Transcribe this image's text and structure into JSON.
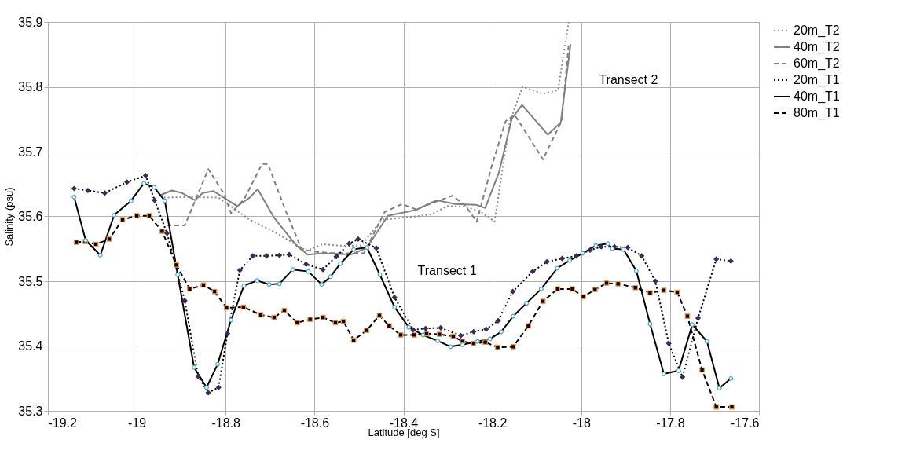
{
  "chart_data": {
    "type": "line",
    "xlabel": "Latitude [deg S]",
    "ylabel": "Salinity (psu)",
    "xlim": [
      -19.2,
      -17.6
    ],
    "xticks": [
      -19.2,
      -19,
      -18.8,
      -18.6,
      -18.4,
      -18.2,
      -18,
      -17.8,
      -17.6
    ],
    "ylim": [
      35.3,
      35.9
    ],
    "yticks": [
      35.3,
      35.4,
      35.5,
      35.6,
      35.7,
      35.8,
      35.9
    ],
    "grid": true,
    "legend": "right",
    "annotations": [
      "Transect 2",
      "Transect 1"
    ],
    "series": [
      {
        "name": "20m_T2",
        "color": "#8c8c8c",
        "line_style": "dotted",
        "marker": "none",
        "x": [
          -18.939,
          -18.875,
          -18.816,
          -18.746,
          -18.688,
          -18.618,
          -18.582,
          -18.547,
          -18.495,
          -18.448,
          -18.384,
          -18.337,
          -18.302,
          -18.261,
          -18.226,
          -18.195,
          -18.161,
          -18.132,
          -18.086,
          -18.052,
          -18.028
        ],
        "values": [
          35.629,
          35.63,
          35.629,
          35.595,
          35.575,
          35.547,
          35.557,
          35.555,
          35.555,
          35.595,
          35.599,
          35.603,
          35.616,
          35.615,
          35.607,
          35.592,
          35.745,
          35.8,
          35.789,
          35.795,
          35.9
        ]
      },
      {
        "name": "40m_T2",
        "color": "#808080",
        "line_style": "solid",
        "marker": "none",
        "x": [
          -18.946,
          -18.921,
          -18.898,
          -18.869,
          -18.852,
          -18.827,
          -18.8,
          -18.774,
          -18.746,
          -18.728,
          -18.692,
          -18.641,
          -18.615,
          -18.582,
          -18.547,
          -18.518,
          -18.483,
          -18.435,
          -18.372,
          -18.325,
          -18.284,
          -18.237,
          -18.216,
          -18.185,
          -18.156,
          -18.133,
          -18.075,
          -18.046,
          -18.024
        ],
        "values": [
          35.633,
          35.64,
          35.636,
          35.625,
          35.636,
          35.639,
          35.627,
          35.616,
          35.629,
          35.642,
          35.599,
          35.555,
          35.541,
          35.543,
          35.542,
          35.541,
          35.551,
          35.601,
          35.61,
          35.625,
          35.619,
          35.618,
          35.613,
          35.668,
          35.751,
          35.772,
          35.726,
          35.745,
          35.866
        ]
      },
      {
        "name": "60m_T2",
        "color": "#808080",
        "line_style": "dashed",
        "marker": "none",
        "x": [
          -18.933,
          -18.892,
          -18.839,
          -18.804,
          -18.788,
          -18.758,
          -18.718,
          -18.705,
          -18.664,
          -18.629,
          -18.594,
          -18.547,
          -18.489,
          -18.442,
          -18.403,
          -18.372,
          -18.29,
          -18.261,
          -18.235,
          -18.202,
          -18.17,
          -18.15,
          -18.086,
          -18.044,
          -18.028
        ],
        "values": [
          35.586,
          35.586,
          35.673,
          35.635,
          35.605,
          35.627,
          35.681,
          35.681,
          35.607,
          35.549,
          35.545,
          35.543,
          35.543,
          35.607,
          35.619,
          35.611,
          35.632,
          35.617,
          35.592,
          35.676,
          35.747,
          35.757,
          35.688,
          35.747,
          35.866
        ]
      },
      {
        "name": "20m_T1",
        "color": "#000000",
        "line_style": "dotted",
        "marker": "diamond",
        "x": [
          -19.141,
          -19.11,
          -19.072,
          -19.022,
          -18.98,
          -18.96,
          -18.932,
          -18.892,
          -18.862,
          -18.839,
          -18.816,
          -18.796,
          -18.768,
          -18.739,
          -18.708,
          -18.679,
          -18.657,
          -18.619,
          -18.581,
          -18.551,
          -18.522,
          -18.502,
          -18.461,
          -18.42,
          -18.378,
          -18.35,
          -18.316,
          -18.271,
          -18.242,
          -18.214,
          -18.187,
          -18.154,
          -18.109,
          -18.077,
          -18.043,
          -18.011,
          -17.98,
          -17.955,
          -17.925,
          -17.895,
          -17.864,
          -17.833,
          -17.803,
          -17.772,
          -17.737,
          -17.696,
          -17.663
        ],
        "values": [
          35.643,
          35.64,
          35.636,
          35.653,
          35.663,
          35.625,
          35.574,
          35.47,
          35.353,
          35.328,
          35.336,
          35.419,
          35.517,
          35.539,
          35.539,
          35.54,
          35.541,
          35.526,
          35.518,
          35.538,
          35.558,
          35.565,
          35.551,
          35.475,
          35.425,
          35.427,
          35.428,
          35.416,
          35.422,
          35.426,
          35.439,
          35.484,
          35.515,
          35.53,
          35.535,
          35.539,
          35.548,
          35.553,
          35.553,
          35.552,
          35.539,
          35.5,
          35.404,
          35.352,
          35.443,
          35.534,
          35.531
        ]
      },
      {
        "name": "40m_T1",
        "color": "#000000",
        "line_style": "solid",
        "marker": "circle",
        "x": [
          -19.141,
          -19.115,
          -19.082,
          -19.051,
          -19.013,
          -18.984,
          -18.961,
          -18.937,
          -18.908,
          -18.871,
          -18.843,
          -18.818,
          -18.788,
          -18.759,
          -18.729,
          -18.702,
          -18.679,
          -18.649,
          -18.614,
          -18.584,
          -18.564,
          -18.542,
          -18.512,
          -18.482,
          -18.453,
          -18.42,
          -18.388,
          -18.356,
          -18.323,
          -18.294,
          -18.267,
          -18.233,
          -18.205,
          -18.18,
          -18.153,
          -18.123,
          -18.09,
          -18.054,
          -18.026,
          -17.997,
          -17.967,
          -17.94,
          -17.93,
          -17.905,
          -17.876,
          -17.845,
          -17.814,
          -17.781,
          -17.75,
          -17.717,
          -17.689,
          -17.663
        ],
        "values": [
          35.63,
          35.563,
          35.54,
          35.602,
          35.624,
          35.651,
          35.645,
          35.624,
          35.51,
          35.367,
          35.336,
          35.372,
          35.44,
          35.493,
          35.501,
          35.495,
          35.496,
          35.518,
          35.515,
          35.495,
          35.507,
          35.527,
          35.549,
          35.552,
          35.51,
          35.46,
          35.429,
          35.417,
          35.408,
          35.399,
          35.402,
          35.407,
          35.411,
          35.422,
          35.446,
          35.466,
          35.488,
          35.52,
          35.532,
          35.543,
          35.555,
          35.558,
          35.55,
          35.549,
          35.516,
          35.434,
          35.357,
          35.362,
          35.433,
          35.407,
          35.335,
          35.35
        ]
      },
      {
        "name": "80m_T1",
        "color": "#000000",
        "line_style": "dashed",
        "marker": "square",
        "x": [
          -19.136,
          -19.116,
          -19.092,
          -19.062,
          -19.032,
          -19.0,
          -18.972,
          -18.943,
          -18.911,
          -18.881,
          -18.85,
          -18.825,
          -18.798,
          -18.76,
          -18.721,
          -18.691,
          -18.668,
          -18.639,
          -18.61,
          -18.581,
          -18.553,
          -18.535,
          -18.512,
          -18.483,
          -18.454,
          -18.432,
          -18.406,
          -18.376,
          -18.348,
          -18.319,
          -18.288,
          -18.267,
          -18.242,
          -18.216,
          -18.188,
          -18.153,
          -18.119,
          -18.086,
          -18.053,
          -18.02,
          -17.995,
          -17.969,
          -17.943,
          -17.917,
          -17.878,
          -17.845,
          -17.814,
          -17.784,
          -17.761,
          -17.728,
          -17.696,
          -17.661
        ],
        "values": [
          35.56,
          35.561,
          35.557,
          35.565,
          35.595,
          35.601,
          35.601,
          35.577,
          35.525,
          35.488,
          35.494,
          35.484,
          35.459,
          35.46,
          35.448,
          35.444,
          35.455,
          35.436,
          35.441,
          35.444,
          35.436,
          35.438,
          35.409,
          35.424,
          35.447,
          35.431,
          35.417,
          35.417,
          35.419,
          35.418,
          35.415,
          35.407,
          35.404,
          35.406,
          35.398,
          35.399,
          35.431,
          35.469,
          35.488,
          35.488,
          35.476,
          35.487,
          35.497,
          35.496,
          35.49,
          35.482,
          35.486,
          35.483,
          35.446,
          35.363,
          35.306,
          35.306
        ]
      }
    ]
  }
}
